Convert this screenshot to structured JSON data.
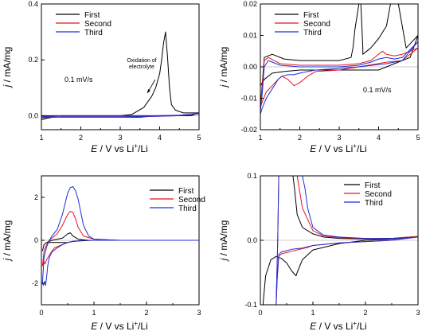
{
  "colors": {
    "First": "#000000",
    "Second": "#e8161b",
    "Third": "#1f2fd6",
    "axis": "#000000"
  },
  "chart_data": [
    {
      "type": "line",
      "xlabel_parts": [
        "E",
        " / V vs Li",
        "+",
        "/Li"
      ],
      "ylabel_parts": [
        "j",
        " / mA/mg"
      ],
      "xlim": [
        1,
        5
      ],
      "ylim": [
        -0.05,
        0.4
      ],
      "xticks": [
        1,
        2,
        3,
        4,
        5
      ],
      "yticks": [
        0.0,
        0.2,
        0.4
      ],
      "ytick_labels": [
        "0.0",
        "0.2",
        "0.4"
      ],
      "legend": [
        "First",
        "Second",
        "Third"
      ],
      "legend_position": "top-left",
      "annotations": [
        "0.1 mV/s",
        "Oxidation of electrolyte"
      ],
      "series": [
        {
          "name": "First",
          "x": [
            1.0,
            1.2,
            1.6,
            2.0,
            2.5,
            3.0,
            3.3,
            3.6,
            3.8,
            3.9,
            4.0,
            4.05,
            4.1,
            4.15,
            4.2,
            4.25,
            4.3,
            4.4,
            4.6,
            4.8,
            5.0,
            4.8,
            4.4,
            4.0,
            3.5,
            3.0,
            2.5,
            2.0,
            1.6,
            1.3,
            1.1,
            1.0
          ],
          "y": [
            0.0,
            0.0,
            0.0,
            0.0,
            0.0,
            0.0,
            0.005,
            0.03,
            0.07,
            0.1,
            0.15,
            0.2,
            0.26,
            0.3,
            0.21,
            0.1,
            0.04,
            0.02,
            0.01,
            0.01,
            0.01,
            0.0,
            0.0,
            0.0,
            -0.005,
            -0.005,
            -0.005,
            -0.005,
            -0.005,
            -0.005,
            -0.01,
            -0.015
          ]
        },
        {
          "name": "Second",
          "x": [
            1.0,
            1.5,
            2.0,
            3.0,
            4.0,
            4.5,
            5.0,
            4.5,
            4.0,
            3.0,
            2.0,
            1.5,
            1.2,
            1.0
          ],
          "y": [
            -0.005,
            0.0,
            0.0,
            0.0,
            0.0,
            0.002,
            0.008,
            0.0,
            -0.002,
            -0.004,
            -0.004,
            -0.004,
            -0.006,
            -0.008
          ]
        },
        {
          "name": "Third",
          "x": [
            1.0,
            1.5,
            2.0,
            3.0,
            4.0,
            4.5,
            5.0,
            4.5,
            4.0,
            3.0,
            2.0,
            1.5,
            1.2,
            1.0
          ],
          "y": [
            -0.004,
            0.0,
            0.0,
            0.0,
            0.0,
            0.002,
            0.007,
            0.0,
            -0.002,
            -0.004,
            -0.004,
            -0.004,
            -0.005,
            -0.007
          ]
        }
      ]
    },
    {
      "type": "line",
      "xlabel_parts": [
        "E",
        " / V vs Li",
        "+",
        "/Li"
      ],
      "ylabel_parts": [
        "j",
        " / mA/mg"
      ],
      "xlim": [
        1,
        5
      ],
      "ylim": [
        -0.02,
        0.02
      ],
      "xticks": [
        1,
        2,
        3,
        4,
        5
      ],
      "yticks": [
        -0.02,
        -0.01,
        0.0,
        0.01,
        0.02
      ],
      "ytick_labels": [
        "-0.02",
        "-0.01",
        "0.00",
        "0.01",
        "0.02"
      ],
      "legend": [
        "First",
        "Second",
        "Third"
      ],
      "legend_position": "top-center",
      "annotations": [
        "0.1 mV/s"
      ],
      "series": [
        {
          "name": "First",
          "x": [
            1.0,
            1.05,
            1.1,
            1.3,
            1.6,
            2.0,
            2.5,
            3.0,
            3.3,
            3.35,
            3.4,
            3.5,
            3.55,
            3.6,
            3.6,
            3.8,
            4.0,
            4.2,
            4.3,
            4.5,
            4.7,
            5.0,
            4.8,
            4.6,
            4.4,
            4.2,
            4.0,
            3.5,
            3.0,
            2.5,
            2.0,
            1.6,
            1.3,
            1.1,
            1.0
          ],
          "y": [
            -0.013,
            -0.005,
            0.003,
            0.004,
            0.0025,
            0.002,
            0.002,
            0.002,
            0.003,
            0.006,
            0.012,
            0.02,
            0.02,
            0.006,
            0.004,
            0.006,
            0.009,
            0.013,
            0.02,
            0.02,
            0.006,
            0.01,
            0.003,
            0.002,
            0.001,
            0.0,
            -0.001,
            -0.001,
            -0.001,
            -0.001,
            -0.001,
            -0.0015,
            -0.002,
            -0.004,
            -0.006
          ]
        },
        {
          "name": "Second",
          "x": [
            1.0,
            1.05,
            1.1,
            1.2,
            1.5,
            2.0,
            2.5,
            3.0,
            3.5,
            3.8,
            4.0,
            4.1,
            4.2,
            4.4,
            4.6,
            5.0,
            4.6,
            4.2,
            3.5,
            3.0,
            2.4,
            2.2,
            2.0,
            1.85,
            1.7,
            1.55,
            1.45,
            1.3,
            1.15,
            1.05,
            1.0
          ],
          "y": [
            -0.012,
            -0.006,
            0.002,
            0.003,
            0.001,
            0.0005,
            0.0005,
            0.0005,
            0.001,
            0.002,
            0.004,
            0.005,
            0.004,
            0.0035,
            0.004,
            0.006,
            0.002,
            0.0015,
            0.0,
            -0.001,
            -0.0015,
            -0.003,
            -0.005,
            -0.006,
            -0.004,
            -0.003,
            -0.004,
            -0.006,
            -0.008,
            -0.011,
            -0.013
          ]
        },
        {
          "name": "Third",
          "x": [
            1.0,
            1.05,
            1.1,
            1.2,
            1.5,
            2.0,
            2.5,
            3.0,
            3.5,
            3.8,
            4.0,
            4.2,
            4.4,
            4.6,
            5.0,
            4.6,
            4.2,
            3.5,
            3.0,
            2.4,
            2.2,
            2.0,
            1.85,
            1.7,
            1.55,
            1.45,
            1.3,
            1.15,
            1.05,
            1.0
          ],
          "y": [
            -0.014,
            -0.008,
            0.0,
            0.002,
            0.0005,
            0.0,
            0.0,
            0.0,
            0.0005,
            0.0015,
            0.0025,
            0.003,
            0.0025,
            0.003,
            0.008,
            0.002,
            0.001,
            0.0,
            -0.0005,
            -0.001,
            -0.0015,
            -0.002,
            -0.0025,
            -0.0025,
            -0.003,
            -0.004,
            -0.007,
            -0.01,
            -0.013,
            -0.015
          ]
        }
      ]
    },
    {
      "type": "line",
      "xlabel_parts": [
        "E",
        " / V vs Li",
        "+",
        "/Li"
      ],
      "ylabel_parts": [
        "j",
        " / mA/mg"
      ],
      "xlim": [
        0,
        3
      ],
      "ylim": [
        -3,
        3
      ],
      "xticks": [
        0,
        1,
        2,
        3
      ],
      "yticks": [
        -2,
        0,
        2
      ],
      "ytick_labels": [
        "-2",
        "0",
        "2"
      ],
      "legend": [
        "First",
        "Second",
        "Third"
      ],
      "legend_position": "top-right",
      "annotations": [],
      "series": [
        {
          "name": "First",
          "x": [
            0.02,
            0.05,
            0.1,
            0.15,
            0.2,
            0.3,
            0.4,
            0.5,
            0.55,
            0.6,
            0.7,
            0.9,
            1.2,
            1.5,
            2.0,
            2.5,
            3.0,
            2.5,
            2.0,
            1.5,
            1.0,
            0.8,
            0.6,
            0.5,
            0.4,
            0.3,
            0.2,
            0.1,
            0.05,
            0.02
          ],
          "y": [
            -0.5,
            -0.2,
            -0.1,
            -0.05,
            0.0,
            0.05,
            0.1,
            0.3,
            0.35,
            0.2,
            0.05,
            0.0,
            0.0,
            0.0,
            0.0,
            0.0,
            0.0,
            0.0,
            0.0,
            0.0,
            0.0,
            -0.02,
            -0.05,
            -0.1,
            -0.1,
            -0.1,
            -0.1,
            -0.1,
            -0.2,
            -0.5
          ]
        },
        {
          "name": "Second",
          "x": [
            0.02,
            0.05,
            0.1,
            0.15,
            0.2,
            0.3,
            0.4,
            0.5,
            0.55,
            0.6,
            0.65,
            0.7,
            0.8,
            1.0,
            1.5,
            2.0,
            2.5,
            3.0,
            2.5,
            2.0,
            1.5,
            1.0,
            0.8,
            0.6,
            0.5,
            0.4,
            0.3,
            0.25,
            0.2,
            0.15,
            0.1,
            0.07,
            0.05,
            0.02
          ],
          "y": [
            -1.2,
            -0.5,
            -0.2,
            0.0,
            0.1,
            0.3,
            0.7,
            1.2,
            1.35,
            1.3,
            1.0,
            0.6,
            0.2,
            0.05,
            0.0,
            0.0,
            0.0,
            0.0,
            0.0,
            0.0,
            0.0,
            0.0,
            0.0,
            -0.05,
            -0.1,
            -0.2,
            -0.3,
            -0.35,
            -0.5,
            -0.7,
            -0.9,
            -1.1,
            -1.0,
            -1.2
          ]
        },
        {
          "name": "Third",
          "x": [
            0.02,
            0.05,
            0.1,
            0.15,
            0.2,
            0.3,
            0.4,
            0.5,
            0.55,
            0.6,
            0.65,
            0.7,
            0.75,
            0.8,
            0.9,
            1.0,
            1.5,
            2.0,
            2.5,
            3.0,
            2.5,
            2.0,
            1.5,
            1.0,
            0.8,
            0.6,
            0.5,
            0.4,
            0.3,
            0.2,
            0.15,
            0.12,
            0.1,
            0.08,
            0.06,
            0.04,
            0.02
          ],
          "y": [
            -2.0,
            -0.8,
            -0.3,
            0.0,
            0.2,
            0.5,
            1.2,
            2.2,
            2.45,
            2.5,
            2.3,
            1.9,
            1.3,
            0.7,
            0.2,
            0.05,
            0.0,
            0.0,
            0.0,
            0.0,
            0.0,
            0.0,
            0.0,
            0.0,
            0.0,
            -0.05,
            -0.1,
            -0.2,
            -0.35,
            -0.55,
            -0.8,
            -1.2,
            -1.7,
            -2.1,
            -1.9,
            -2.1,
            -2.0
          ]
        }
      ]
    },
    {
      "type": "line",
      "xlabel_parts": [
        "E",
        " / V vs Li",
        "+",
        "/Li"
      ],
      "ylabel_parts": [
        "j",
        " / mA/mg"
      ],
      "xlim": [
        0,
        3
      ],
      "ylim": [
        -0.1,
        0.1
      ],
      "xticks": [
        0,
        1,
        2,
        3
      ],
      "yticks": [
        -0.1,
        0.0,
        0.1
      ],
      "ytick_labels": [
        "-0.1",
        "0.0",
        "0.1"
      ],
      "legend": [
        "First",
        "Second",
        "Third"
      ],
      "legend_position": "top-right",
      "annotations": [],
      "series": [
        {
          "name": "First",
          "x": [
            0.05,
            0.15,
            0.3,
            0.45,
            0.55,
            0.62,
            0.65,
            0.7,
            0.8,
            1.0,
            1.2,
            1.5,
            2.0,
            2.5,
            3.0,
            2.5,
            2.0,
            1.5,
            1.0,
            0.8,
            0.7,
            0.68,
            0.6,
            0.5,
            0.4,
            0.3,
            0.2,
            0.1,
            0.05
          ],
          "y": [
            0.1,
            0.1,
            0.1,
            0.1,
            0.1,
            0.1,
            0.08,
            0.04,
            0.02,
            0.01,
            0.005,
            0.003,
            0.002,
            0.003,
            0.006,
            0.002,
            0.0,
            -0.005,
            -0.015,
            -0.03,
            -0.05,
            -0.055,
            -0.048,
            -0.035,
            -0.028,
            -0.025,
            -0.03,
            -0.055,
            -0.1
          ]
        },
        {
          "name": "Second",
          "x": [
            0.3,
            0.33,
            0.35,
            0.4,
            0.45,
            0.5,
            0.55,
            0.6,
            0.65,
            0.7,
            0.8,
            1.0,
            1.2,
            1.5,
            2.0,
            2.5,
            3.0,
            2.5,
            2.0,
            1.5,
            1.0,
            0.9,
            0.8,
            0.7,
            0.6,
            0.5,
            0.4,
            0.35,
            0.32,
            0.3
          ],
          "y": [
            -0.1,
            0.0,
            0.1,
            0.1,
            0.1,
            0.1,
            0.1,
            0.1,
            0.1,
            0.1,
            0.05,
            0.015,
            0.007,
            0.004,
            0.003,
            0.003,
            0.006,
            0.0,
            -0.002,
            -0.004,
            -0.008,
            -0.011,
            -0.013,
            -0.015,
            -0.017,
            -0.019,
            -0.021,
            -0.025,
            -0.06,
            -0.1
          ]
        },
        {
          "name": "Third",
          "x": [
            0.3,
            0.33,
            0.35,
            0.4,
            0.5,
            0.6,
            0.7,
            0.8,
            0.85,
            0.9,
            1.0,
            1.2,
            1.5,
            2.0,
            2.5,
            3.0,
            2.5,
            2.0,
            1.5,
            1.0,
            0.9,
            0.8,
            0.7,
            0.6,
            0.5,
            0.4,
            0.35,
            0.32,
            0.3
          ],
          "y": [
            -0.1,
            0.0,
            0.1,
            0.1,
            0.1,
            0.1,
            0.1,
            0.1,
            0.08,
            0.05,
            0.02,
            0.008,
            0.005,
            0.003,
            0.003,
            0.005,
            0.0,
            -0.002,
            -0.004,
            -0.008,
            -0.01,
            -0.012,
            -0.013,
            -0.014,
            -0.016,
            -0.018,
            -0.022,
            -0.06,
            -0.1
          ]
        }
      ]
    }
  ]
}
